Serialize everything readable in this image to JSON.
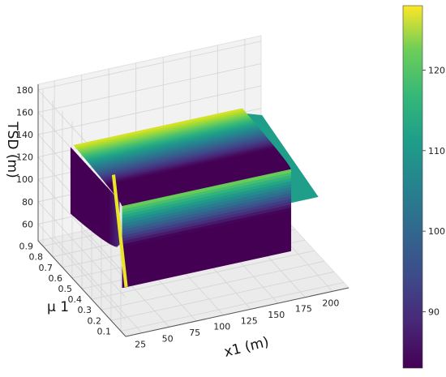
{
  "chart_data": {
    "type": "surface3d",
    "title": "",
    "xlabel": "x1 (m)",
    "ylabel": "μ 1",
    "zlabel": "TSD (m)",
    "x_ticks": [
      "25",
      "50",
      "75",
      "100",
      "125",
      "150",
      "175",
      "200"
    ],
    "y_ticks": [
      "0.1",
      "0.2",
      "0.3",
      "0.4",
      "0.5",
      "0.6",
      "0.7",
      "0.8",
      "0.9"
    ],
    "z_ticks": [
      "60",
      "80",
      "100",
      "120",
      "140",
      "160",
      "180"
    ],
    "colorbar_ticks": [
      "90",
      "100",
      "110",
      "120"
    ],
    "colormap": "viridis",
    "xlim": [
      10,
      215
    ],
    "ylim": [
      0.05,
      0.95
    ],
    "zlim": [
      45,
      185
    ],
    "colorbar_range": [
      83,
      128
    ],
    "grid": true,
    "legend": "none",
    "surface_levels": {
      "front_bottom": 47,
      "front_top": 120,
      "back_top": 127,
      "left_wall_bottom": 63,
      "left_wall_top": 122,
      "right_step": 98
    }
  },
  "colors": {
    "pane": "#f2f2f2",
    "grid": "#d4d4d4",
    "axis": "#555555"
  }
}
